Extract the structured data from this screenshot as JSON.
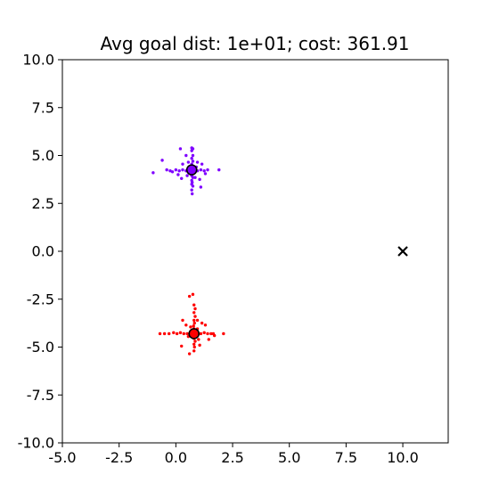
{
  "chart_data": {
    "type": "scatter",
    "title": "Avg goal dist: 1e+01; cost: 361.91",
    "xlabel": "",
    "ylabel": "",
    "xlim": [
      -5.0,
      12.0
    ],
    "ylim": [
      -10.0,
      10.0
    ],
    "xticks": [
      "-5.0",
      "-2.5",
      "0.0",
      "2.5",
      "5.0",
      "7.5",
      "10.0"
    ],
    "xtick_values": [
      -5.0,
      -2.5,
      0.0,
      2.5,
      5.0,
      7.5,
      10.0
    ],
    "yticks": [
      "10.0",
      "7.5",
      "5.0",
      "2.5",
      "0.0",
      "-2.5",
      "-5.0",
      "-7.5",
      "-10.0"
    ],
    "ytick_values": [
      10.0,
      7.5,
      5.0,
      2.5,
      0.0,
      -2.5,
      -5.0,
      -7.5,
      -10.0
    ],
    "grid": false,
    "legend": "none",
    "goal": {
      "x": 10.0,
      "y": 0.0,
      "marker": "x",
      "color": "#000000"
    },
    "clusters": [
      {
        "color": "#7f00ff",
        "center": {
          "x": 0.7,
          "y": 4.25
        },
        "points": [
          [
            0.7,
            5.4
          ],
          [
            0.75,
            5.35
          ],
          [
            0.7,
            5.25
          ],
          [
            0.75,
            5.0
          ],
          [
            0.7,
            4.85
          ],
          [
            0.75,
            4.7
          ],
          [
            0.7,
            4.55
          ],
          [
            0.72,
            4.45
          ],
          [
            0.68,
            4.35
          ],
          [
            0.7,
            3.95
          ],
          [
            0.75,
            3.85
          ],
          [
            0.7,
            3.7
          ],
          [
            0.72,
            3.6
          ],
          [
            0.7,
            3.5
          ],
          [
            0.75,
            3.4
          ],
          [
            0.7,
            3.2
          ],
          [
            0.72,
            3.0
          ],
          [
            -1.0,
            4.1
          ],
          [
            -0.6,
            4.75
          ],
          [
            -0.4,
            4.25
          ],
          [
            -0.25,
            4.2
          ],
          [
            -0.15,
            4.15
          ],
          [
            0.0,
            4.25
          ],
          [
            0.15,
            4.2
          ],
          [
            0.3,
            4.25
          ],
          [
            0.45,
            4.2
          ],
          [
            0.55,
            4.15
          ],
          [
            0.95,
            4.2
          ],
          [
            1.1,
            4.25
          ],
          [
            1.25,
            4.2
          ],
          [
            1.4,
            4.25
          ],
          [
            1.9,
            4.25
          ],
          [
            0.2,
            5.35
          ],
          [
            0.45,
            5.0
          ],
          [
            0.95,
            4.65
          ],
          [
            1.15,
            4.55
          ],
          [
            0.3,
            4.55
          ],
          [
            0.5,
            3.95
          ],
          [
            0.85,
            3.85
          ],
          [
            1.05,
            3.75
          ],
          [
            1.1,
            3.35
          ],
          [
            0.25,
            3.8
          ],
          [
            0.55,
            4.65
          ],
          [
            1.3,
            4.05
          ],
          [
            0.1,
            4.0
          ],
          [
            0.9,
            4.4
          ]
        ]
      },
      {
        "color": "#ff0000",
        "center": {
          "x": 0.8,
          "y": -4.3
        },
        "points": [
          [
            0.6,
            -2.35
          ],
          [
            0.75,
            -2.25
          ],
          [
            0.8,
            -2.8
          ],
          [
            0.85,
            -3.0
          ],
          [
            0.8,
            -3.2
          ],
          [
            0.85,
            -3.4
          ],
          [
            0.8,
            -3.6
          ],
          [
            0.82,
            -3.75
          ],
          [
            0.78,
            -3.9
          ],
          [
            0.8,
            -4.05
          ],
          [
            0.8,
            -4.55
          ],
          [
            0.85,
            -4.7
          ],
          [
            0.8,
            -4.85
          ],
          [
            0.82,
            -5.0
          ],
          [
            0.8,
            -5.2
          ],
          [
            -0.7,
            -4.3
          ],
          [
            -0.5,
            -4.3
          ],
          [
            -0.3,
            -4.3
          ],
          [
            -0.1,
            -4.25
          ],
          [
            0.05,
            -4.3
          ],
          [
            0.2,
            -4.25
          ],
          [
            0.35,
            -4.3
          ],
          [
            0.5,
            -4.3
          ],
          [
            1.1,
            -4.3
          ],
          [
            1.25,
            -4.25
          ],
          [
            1.4,
            -4.3
          ],
          [
            1.55,
            -4.3
          ],
          [
            1.65,
            -4.3
          ],
          [
            2.1,
            -4.3
          ],
          [
            0.3,
            -3.6
          ],
          [
            0.45,
            -3.85
          ],
          [
            0.25,
            -4.95
          ],
          [
            0.55,
            -4.45
          ],
          [
            1.0,
            -4.6
          ],
          [
            1.15,
            -3.75
          ],
          [
            1.3,
            -3.85
          ],
          [
            1.45,
            -4.6
          ],
          [
            0.95,
            -4.05
          ],
          [
            0.6,
            -5.35
          ],
          [
            1.7,
            -4.4
          ],
          [
            1.05,
            -4.9
          ],
          [
            0.65,
            -3.95
          ],
          [
            0.95,
            -3.6
          ]
        ]
      }
    ]
  }
}
